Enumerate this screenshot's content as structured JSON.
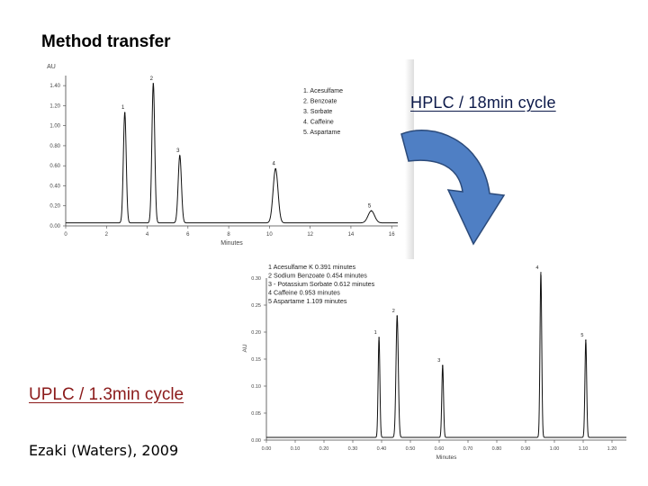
{
  "slide": {
    "title": "Method transfer",
    "hplc_label": "HPLC / 18min cycle",
    "uplc_label": "UPLC / 1.3min cycle",
    "citation": "Ezaki (Waters), 2009"
  },
  "colors": {
    "arrow_fill": "#4f7fc4",
    "arrow_stroke": "#2b4a7a",
    "uplc_label": "#8b1a1a",
    "hplc_label": "#0d1a4a"
  },
  "chart_data": [
    {
      "type": "line",
      "title": "",
      "xlabel": "Minutes",
      "ylabel": "AU",
      "xlim": [
        0,
        16.3
      ],
      "ylim": [
        0,
        1.5
      ],
      "x_ticks": [
        0,
        2,
        4,
        6,
        8,
        10,
        12,
        14,
        16
      ],
      "x_tick_labels": [
        "0",
        "2",
        "4",
        "6",
        "8",
        "10",
        "12",
        "14",
        "16"
      ],
      "y_ticks": [
        0,
        0.2,
        0.4,
        0.6,
        0.8,
        1.0,
        1.2,
        1.4
      ],
      "y_tick_labels": [
        "0.00",
        "0.20",
        "0.40",
        "0.60",
        "0.80",
        "1.00",
        "1.20",
        "1.40"
      ],
      "baseline": 0.03,
      "peaks": [
        {
          "label": "1",
          "x": 2.9,
          "y": 1.13,
          "width": 0.07
        },
        {
          "label": "2",
          "x": 4.3,
          "y": 1.42,
          "width": 0.07
        },
        {
          "label": "3",
          "x": 5.6,
          "y": 0.7,
          "width": 0.08
        },
        {
          "label": "4",
          "x": 10.3,
          "y": 0.57,
          "width": 0.12
        },
        {
          "label": "5",
          "x": 15.0,
          "y": 0.15,
          "width": 0.16
        }
      ],
      "legend": [
        "1. Acesulfame",
        "2. Benzoate",
        "3. Sorbate",
        "4. Caffeine",
        "5. Aspartame"
      ]
    },
    {
      "type": "line",
      "title": "",
      "xlabel": "Minutes",
      "ylabel": "AU",
      "xlim": [
        0,
        1.25
      ],
      "ylim": [
        0,
        0.3
      ],
      "x_ticks": [
        0,
        0.1,
        0.2,
        0.3,
        0.4,
        0.5,
        0.6,
        0.7,
        0.8,
        0.9,
        1.0,
        1.1,
        1.2
      ],
      "x_tick_labels": [
        "0.00",
        "0.10",
        "0.20",
        "0.30",
        "0.40",
        "0.50",
        "0.60",
        "0.70",
        "0.80",
        "0.90",
        "1.00",
        "1.10",
        "1.20"
      ],
      "y_ticks": [
        0,
        0.05,
        0.1,
        0.15,
        0.2,
        0.25
      ],
      "y_tick_labels": [
        "0.00",
        "0.05",
        "0.10",
        "0.15",
        "0.20",
        "0.25"
      ],
      "extra_y_tick_labels": [
        "0.30"
      ],
      "baseline": 0.005,
      "peaks": [
        {
          "label": "1",
          "x": 0.391,
          "y": 0.19,
          "width": 0.003
        },
        {
          "label": "2",
          "x": 0.454,
          "y": 0.23,
          "width": 0.004
        },
        {
          "label": "3",
          "x": 0.612,
          "y": 0.138,
          "width": 0.003
        },
        {
          "label": "4",
          "x": 0.953,
          "y": 0.31,
          "width": 0.003
        },
        {
          "label": "5",
          "x": 1.109,
          "y": 0.185,
          "width": 0.003
        }
      ],
      "legend": [
        "1   Acesulfame K 0.391 minutes",
        "2   Sodium Benzoate 0.454 minutes",
        "3 - Potassium Sorbate 0.612 minutes",
        "4   Caffeine 0.953 minutes",
        "5   Aspartame 1.109 minutes"
      ]
    }
  ]
}
